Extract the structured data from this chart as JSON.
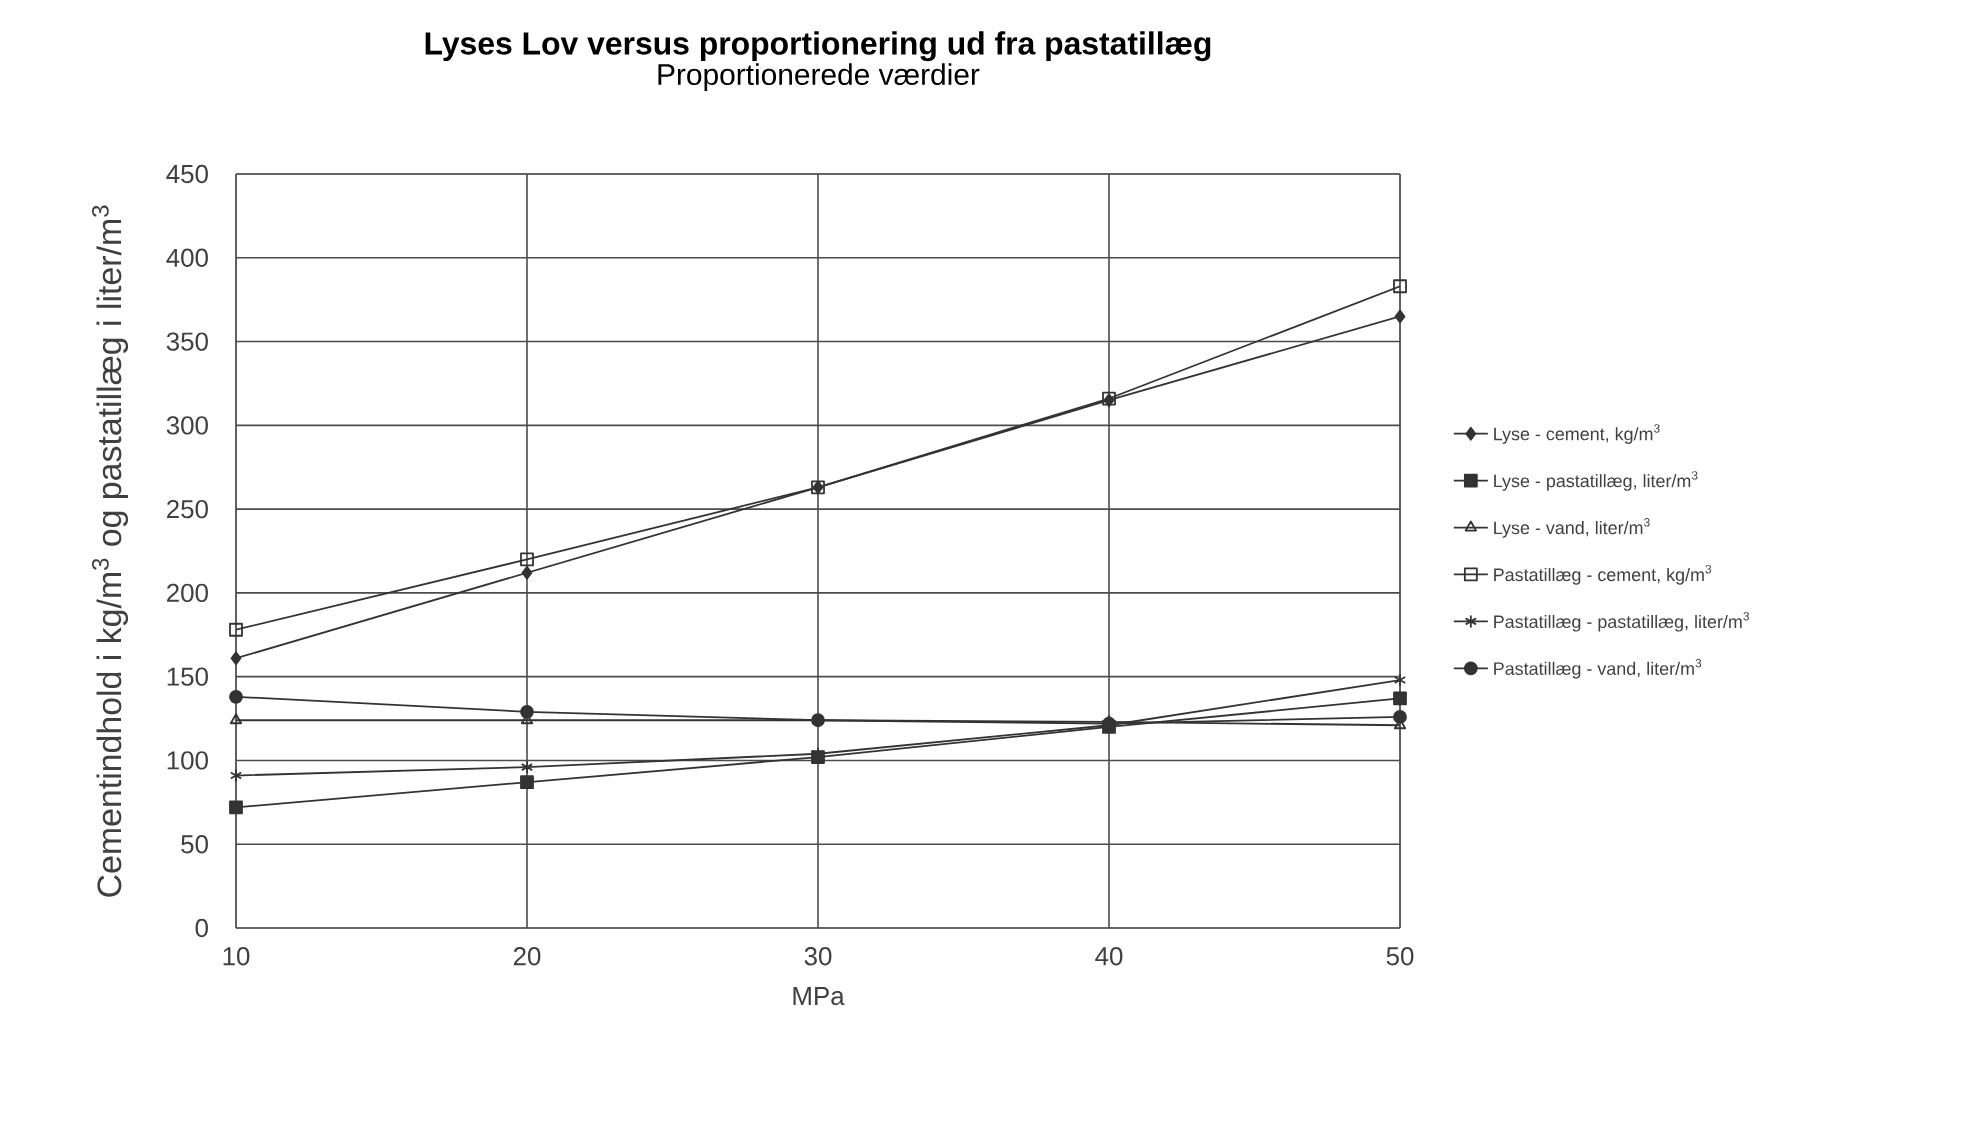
{
  "chart_data": {
    "type": "line",
    "title": "Lyses Lov versus proportionering ud fra pastatillæg",
    "subtitle": "Proportionerede værdier",
    "xlabel": "MPa",
    "ylabel": "Cementindhold i kg/m$^{3}$ og pastatillæg i liter/m$^{3}$",
    "x": [
      10,
      20,
      30,
      40,
      50
    ],
    "xlim": [
      10,
      50
    ],
    "xticks": [
      10,
      20,
      30,
      40,
      50
    ],
    "ylim": [
      0,
      450
    ],
    "yticks": [
      0,
      50,
      100,
      150,
      200,
      250,
      300,
      350,
      400,
      450
    ],
    "grid": true,
    "legend": "right",
    "series": [
      {
        "name": "Lyse - cement, kg/m$^{3}$",
        "color": "#333333",
        "marker": "diamond",
        "values": [
          161,
          212,
          263,
          315,
          365
        ]
      },
      {
        "name": "Lyse - pastatillæg, liter/m$^{3}$",
        "color": "#333333",
        "marker": "square",
        "values": [
          72,
          87,
          102,
          120,
          137
        ]
      },
      {
        "name": "Lyse - vand, liter/m$^{3}$",
        "color": "#333333",
        "marker": "triangle",
        "values": [
          124,
          124,
          124,
          123,
          121
        ]
      },
      {
        "name": "Pastatillæg - cement, kg/m$^{3}$",
        "color": "#333333",
        "marker": "square",
        "values": [
          178,
          220,
          263,
          316,
          383
        ]
      },
      {
        "name": "Pastatillæg - pastatillæg, liter/m$^{3}$",
        "color": "#333333",
        "marker": "cross",
        "values": [
          91,
          96,
          104,
          121,
          148
        ]
      },
      {
        "name": "Pastatillæg - vand, liter/m$^{3}$",
        "color": "#333333",
        "marker": "circle",
        "values": [
          138,
          129,
          124,
          122,
          126
        ]
      }
    ]
  }
}
